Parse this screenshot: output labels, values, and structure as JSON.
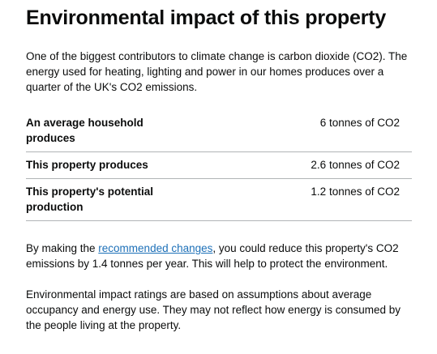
{
  "header": {
    "title": "Environmental impact of this property"
  },
  "intro": "One of the biggest contributors to climate change is carbon dioxide (CO2). The energy used for heating, lighting and power in our homes produces over a quarter of the UK's CO2 emissions.",
  "table": {
    "rows": [
      [
        "An average household produces",
        "6 tonnes of CO2"
      ],
      [
        "This property produces",
        "2.6 tonnes of CO2"
      ],
      [
        "This property's potential production",
        "1.2 tonnes of CO2"
      ]
    ]
  },
  "recommendation": {
    "before": "By making the ",
    "link": "recommended changes",
    "after": ", you could reduce this property's CO2 emissions by 1.4 tonnes per year. This will help to protect the environment."
  },
  "note": "Environmental impact ratings are based on assumptions about average occupancy and energy use. They may not reflect how energy is consumed by the people living at the property."
}
